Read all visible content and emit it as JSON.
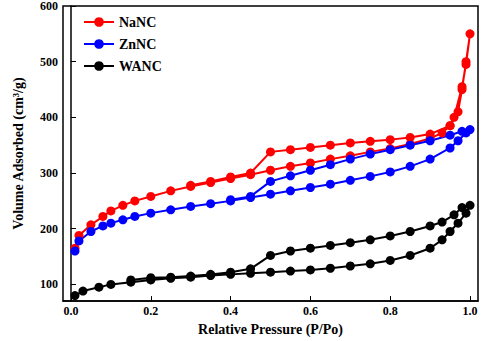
{
  "chart_data": {
    "type": "line",
    "x_label": "Relative Pressure (P/Po)",
    "y_label": "Volume Adsorbed (cm³/g)",
    "xlim": [
      -0.02,
      1.02
    ],
    "xticks": [
      {
        "value": 0,
        "label": "0.0"
      },
      0.2,
      0.4,
      0.6,
      0.8,
      {
        "value": 1,
        "label": "1.0"
      }
    ],
    "ylim": [
      70,
      600
    ],
    "yticks": [
      100,
      200,
      300,
      400,
      500,
      600
    ],
    "grid": false,
    "legend": "top-left",
    "marker": "circle",
    "series": [
      {
        "name": "NaNC",
        "color": "#ff0000",
        "x": [
          0.01,
          0.02,
          0.05,
          0.08,
          0.1,
          0.13,
          0.16,
          0.2,
          0.25,
          0.3,
          0.35,
          0.4,
          0.45,
          0.5,
          0.55,
          0.6,
          0.65,
          0.7,
          0.75,
          0.8,
          0.85,
          0.9,
          0.93,
          0.95,
          0.97,
          0.98,
          0.99,
          1.0,
          0.99,
          0.98,
          0.96,
          0.95,
          0.9,
          0.85,
          0.8,
          0.75,
          0.7,
          0.65,
          0.6,
          0.55,
          0.5,
          0.45,
          0.4,
          0.35,
          0.3
        ],
        "values": [
          165,
          188,
          207,
          222,
          232,
          242,
          250,
          258,
          268,
          276,
          283,
          290,
          297,
          305,
          312,
          318,
          325,
          331,
          338,
          344,
          352,
          362,
          372,
          385,
          410,
          450,
          500,
          550,
          495,
          455,
          400,
          385,
          370,
          364,
          360,
          357,
          354,
          350,
          346,
          342,
          338,
          300,
          293,
          285,
          278
        ]
      },
      {
        "name": "ZnNC",
        "color": "#0000ff",
        "x": [
          0.01,
          0.02,
          0.05,
          0.08,
          0.1,
          0.13,
          0.16,
          0.2,
          0.25,
          0.3,
          0.35,
          0.4,
          0.45,
          0.5,
          0.55,
          0.6,
          0.65,
          0.7,
          0.75,
          0.8,
          0.85,
          0.9,
          0.95,
          0.97,
          0.99,
          1.0,
          0.98,
          0.95,
          0.9,
          0.85,
          0.8,
          0.75,
          0.7,
          0.65,
          0.6,
          0.55,
          0.5,
          0.45,
          0.4
        ],
        "values": [
          160,
          178,
          195,
          205,
          210,
          216,
          222,
          228,
          234,
          240,
          245,
          250,
          256,
          262,
          268,
          274,
          280,
          287,
          294,
          302,
          312,
          325,
          345,
          358,
          372,
          378,
          375,
          368,
          358,
          350,
          342,
          334,
          325,
          315,
          305,
          295,
          285,
          258,
          252
        ]
      },
      {
        "name": "WANC",
        "color": "#000000",
        "x": [
          0.01,
          0.03,
          0.07,
          0.1,
          0.15,
          0.2,
          0.25,
          0.3,
          0.35,
          0.4,
          0.45,
          0.5,
          0.55,
          0.6,
          0.65,
          0.7,
          0.75,
          0.8,
          0.85,
          0.9,
          0.93,
          0.95,
          0.97,
          0.99,
          1.0,
          0.98,
          0.96,
          0.93,
          0.9,
          0.85,
          0.8,
          0.75,
          0.7,
          0.65,
          0.6,
          0.55,
          0.5,
          0.45,
          0.4,
          0.35,
          0.3,
          0.25,
          0.2,
          0.15
        ],
        "values": [
          80,
          88,
          95,
          100,
          104,
          108,
          111,
          113,
          116,
          118,
          120,
          122,
          124,
          126,
          129,
          133,
          137,
          143,
          152,
          165,
          180,
          195,
          210,
          228,
          242,
          238,
          225,
          212,
          205,
          195,
          187,
          180,
          175,
          170,
          165,
          160,
          152,
          128,
          122,
          118,
          115,
          113,
          112,
          108
        ]
      }
    ]
  }
}
